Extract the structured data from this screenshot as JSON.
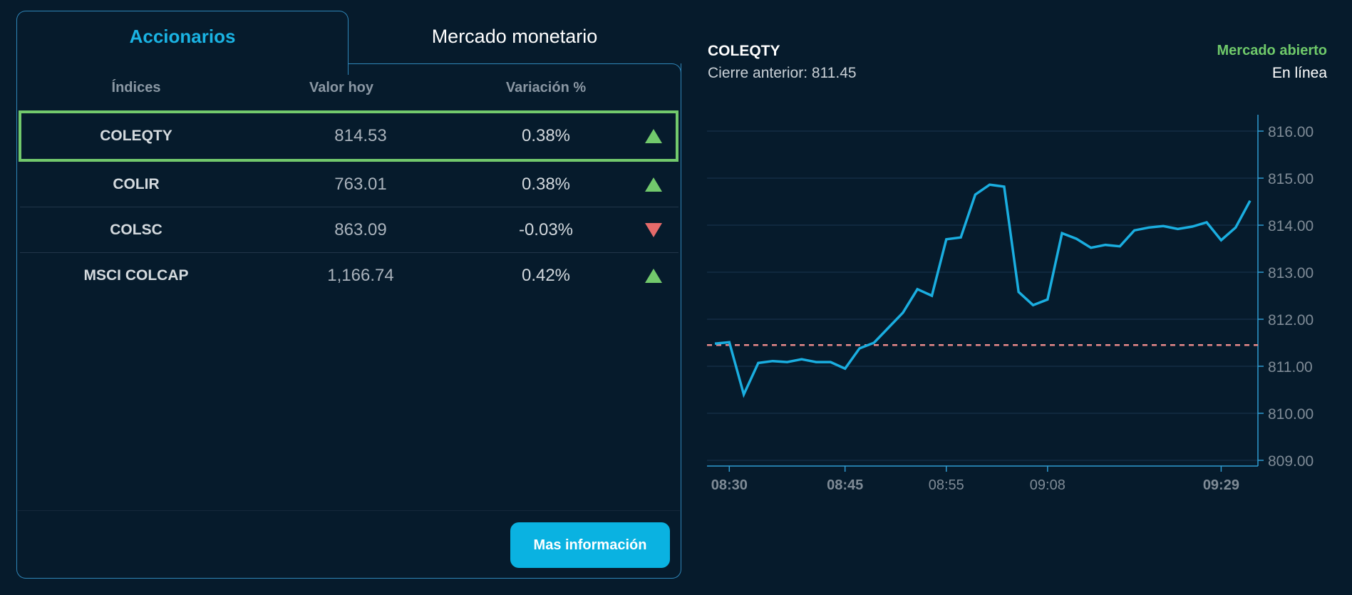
{
  "tabs": [
    {
      "label": "Accionarios",
      "active": true
    },
    {
      "label": "Mercado monetario",
      "active": false
    }
  ],
  "table": {
    "headers": [
      "Índices",
      "Valor hoy",
      "Variación %"
    ],
    "rows": [
      {
        "name": "COLEQTY",
        "value": "814.53",
        "change": "0.38%",
        "direction": "up",
        "selected": true
      },
      {
        "name": "COLIR",
        "value": "763.01",
        "change": "0.38%",
        "direction": "up",
        "selected": false
      },
      {
        "name": "COLSC",
        "value": "863.09",
        "change": "-0.03%",
        "direction": "down",
        "selected": false
      },
      {
        "name": "MSCI COLCAP",
        "value": "1,166.74",
        "change": "0.42%",
        "direction": "up",
        "selected": false
      }
    ]
  },
  "more_info_button": "Mas información",
  "chart_header": {
    "title": "COLEQTY",
    "previous_close_label": "Cierre anterior: 811.45",
    "market_status": "Mercado abierto",
    "connection_status": "En línea"
  },
  "colors": {
    "accent": "#0ab2e1",
    "up": "#72c96c",
    "down": "#e56a6a",
    "line": "#1aaee0",
    "reference": "#e88a8a",
    "background": "#061b2c"
  },
  "chart_data": {
    "type": "line",
    "title": "COLEQTY",
    "xlabel": "",
    "ylabel": "",
    "ylim": [
      809,
      816
    ],
    "yticks": [
      "816.00",
      "815.00",
      "814.00",
      "813.00",
      "812.00",
      "811.00",
      "810.00",
      "809.00"
    ],
    "xticks": [
      {
        "label": "08:30",
        "index": 1,
        "bold": true
      },
      {
        "label": "08:45",
        "index": 9,
        "bold": true
      },
      {
        "label": "08:55",
        "index": 16,
        "bold": false
      },
      {
        "label": "09:08",
        "index": 23,
        "bold": false
      },
      {
        "label": "09:29",
        "index": 35,
        "bold": true
      }
    ],
    "grid": true,
    "reference_line": {
      "label": "Cierre anterior",
      "value": 811.45,
      "style": "dashed"
    },
    "series": [
      {
        "name": "COLEQTY",
        "values": [
          811.48,
          811.51,
          810.4,
          811.07,
          811.11,
          811.09,
          811.15,
          811.09,
          811.09,
          810.95,
          811.38,
          811.5,
          811.82,
          812.14,
          812.64,
          812.5,
          813.7,
          813.74,
          814.65,
          814.86,
          814.82,
          812.58,
          812.3,
          812.42,
          813.83,
          813.71,
          813.52,
          813.58,
          813.55,
          813.89,
          813.95,
          813.98,
          813.92,
          813.97,
          814.06,
          813.68,
          813.95,
          814.52
        ]
      }
    ]
  }
}
